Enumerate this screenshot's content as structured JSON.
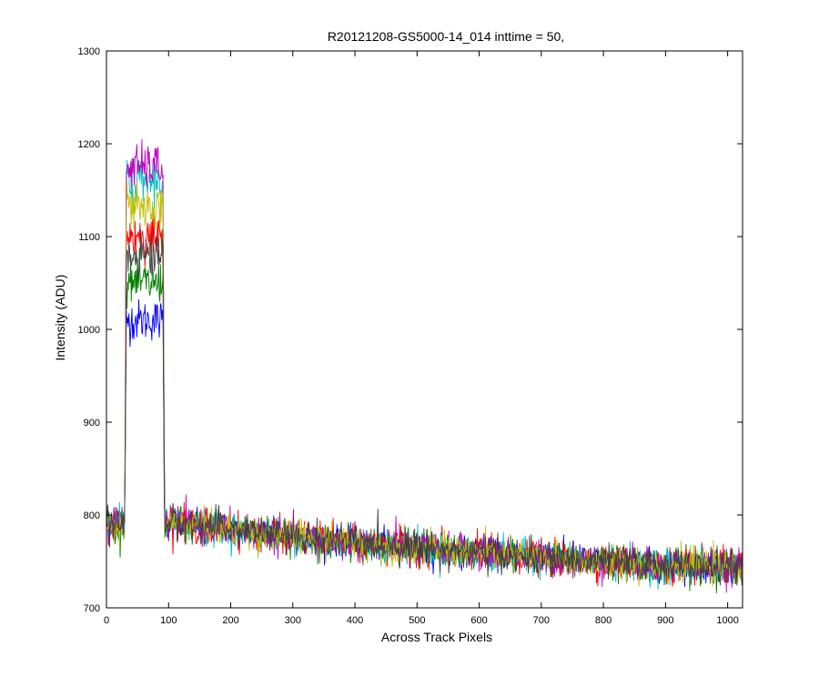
{
  "chart_data": {
    "type": "line",
    "title": "R20121208-GS5000-14_014 inttime = 50,",
    "xlabel": "Across Track Pixels",
    "ylabel": "Intensity (ADU)",
    "xlim": [
      0,
      1024
    ],
    "ylim": [
      700,
      1300
    ],
    "xticks": [
      0,
      100,
      200,
      300,
      400,
      500,
      600,
      700,
      800,
      900,
      1000
    ],
    "yticks": [
      700,
      800,
      900,
      1000,
      1100,
      1200,
      1300
    ],
    "grid": false,
    "legend": "none",
    "x_range": [
      1,
      1024
    ],
    "peak_region": [
      30,
      93
    ],
    "baseline": [
      {
        "x": 1,
        "y": 790
      },
      {
        "x": 100,
        "y": 792
      },
      {
        "x": 200,
        "y": 785
      },
      {
        "x": 300,
        "y": 777
      },
      {
        "x": 400,
        "y": 770
      },
      {
        "x": 500,
        "y": 765
      },
      {
        "x": 600,
        "y": 759
      },
      {
        "x": 700,
        "y": 754
      },
      {
        "x": 800,
        "y": 750
      },
      {
        "x": 900,
        "y": 746
      },
      {
        "x": 1024,
        "y": 743
      }
    ],
    "series": [
      {
        "color": "#0000ff",
        "peak_level": 1010,
        "noise": 8
      },
      {
        "color": "#008000",
        "peak_level": 1050,
        "noise": 9
      },
      {
        "color": "#ff0000",
        "peak_level": 1100,
        "noise": 9
      },
      {
        "color": "#00bfbf",
        "peak_level": 1160,
        "noise": 9
      },
      {
        "color": "#bf00bf",
        "peak_level": 1175,
        "noise": 9
      },
      {
        "color": "#bfbf00",
        "peak_level": 1130,
        "noise": 9
      },
      {
        "color": "#404040",
        "peak_level": 1080,
        "noise": 9
      }
    ]
  }
}
